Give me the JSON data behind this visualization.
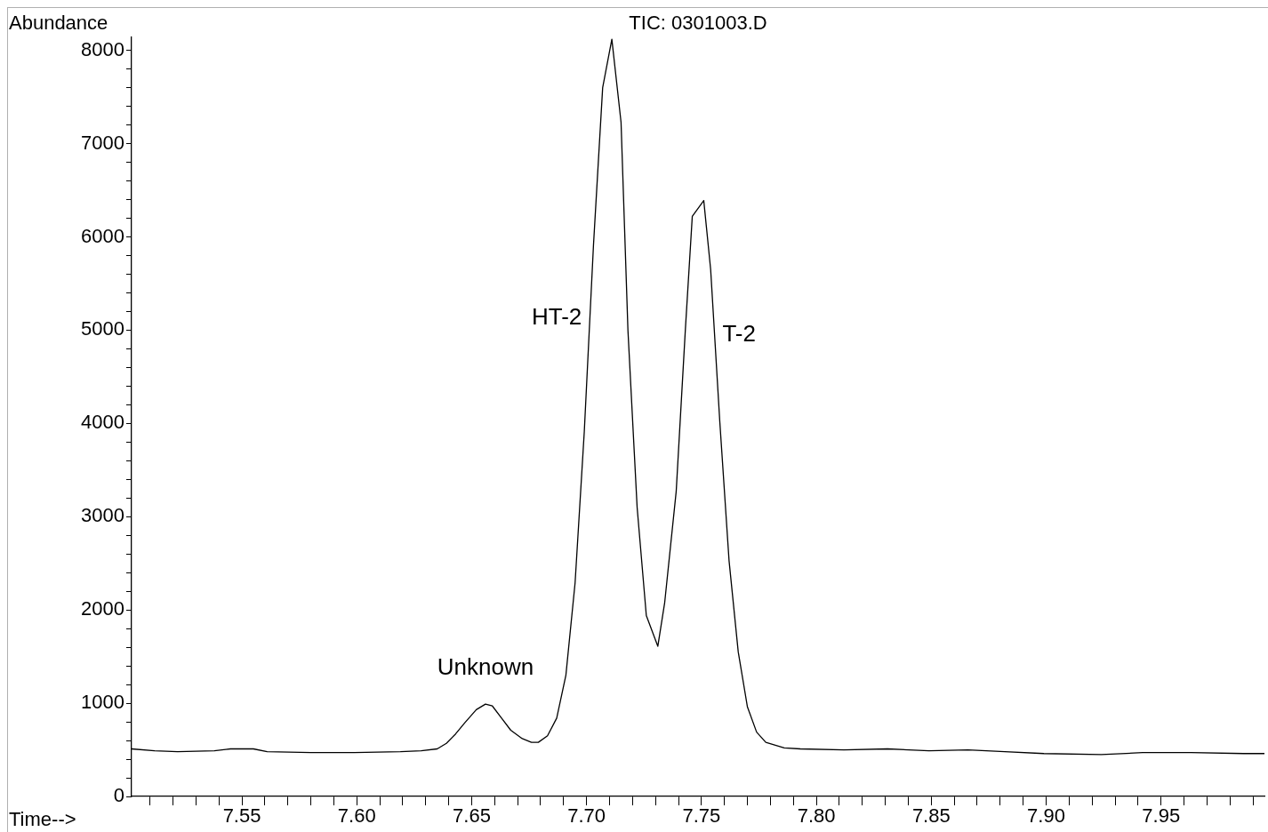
{
  "chart_data": {
    "type": "line",
    "title": "TIC: 0301003.D",
    "xlabel": "Time-->",
    "ylabel": "Abundance",
    "color": "#000000",
    "marker": "none",
    "line_style": "solid",
    "legend": false,
    "x": [
      7.502,
      7.512,
      7.522,
      7.538,
      7.545,
      7.555,
      7.561,
      7.58,
      7.599,
      7.619,
      7.628,
      7.635,
      7.639,
      7.643,
      7.647,
      7.652,
      7.656,
      7.659,
      7.663,
      7.667,
      7.672,
      7.676,
      7.679,
      7.683,
      7.687,
      7.691,
      7.695,
      7.699,
      7.703,
      7.707,
      7.711,
      7.715,
      7.718,
      7.722,
      7.726,
      7.731,
      7.734,
      7.739,
      7.743,
      7.746,
      7.751,
      7.754,
      7.758,
      7.762,
      7.766,
      7.77,
      7.774,
      7.778,
      7.786,
      7.793,
      7.812,
      7.831,
      7.849,
      7.866,
      7.882,
      7.899,
      7.924,
      7.942,
      7.963,
      7.986,
      7.995
    ],
    "values": [
      510,
      490,
      480,
      490,
      510,
      510,
      480,
      470,
      470,
      480,
      490,
      510,
      570,
      670,
      790,
      930,
      990,
      970,
      840,
      710,
      620,
      580,
      580,
      650,
      840,
      1300,
      2290,
      3910,
      5910,
      7600,
      8120,
      7230,
      5000,
      3100,
      1940,
      1610,
      2080,
      3270,
      5010,
      6220,
      6390,
      5650,
      4010,
      2530,
      1550,
      960,
      690,
      580,
      520,
      510,
      500,
      510,
      490,
      500,
      480,
      460,
      450,
      470,
      470,
      460,
      460
    ],
    "xlim": [
      7.502,
      7.995
    ],
    "xticks": [
      {
        "value": 7.51,
        "label": null
      },
      {
        "value": 7.52,
        "label": null
      },
      {
        "value": 7.53,
        "label": null
      },
      {
        "value": 7.54,
        "label": null
      },
      7.55,
      {
        "value": 7.56,
        "label": null
      },
      {
        "value": 7.57,
        "label": null
      },
      {
        "value": 7.58,
        "label": null
      },
      {
        "value": 7.59,
        "label": null
      },
      {
        "value": 7.6,
        "label": "7.60"
      },
      {
        "value": 7.61,
        "label": null
      },
      {
        "value": 7.62,
        "label": null
      },
      {
        "value": 7.63,
        "label": null
      },
      {
        "value": 7.64,
        "label": null
      },
      7.65,
      {
        "value": 7.66,
        "label": null
      },
      {
        "value": 7.67,
        "label": null
      },
      {
        "value": 7.68,
        "label": null
      },
      {
        "value": 7.69,
        "label": null
      },
      {
        "value": 7.7,
        "label": "7.70"
      },
      {
        "value": 7.71,
        "label": null
      },
      {
        "value": 7.72,
        "label": null
      },
      {
        "value": 7.73,
        "label": null
      },
      {
        "value": 7.74,
        "label": null
      },
      7.75,
      {
        "value": 7.76,
        "label": null
      },
      {
        "value": 7.77,
        "label": null
      },
      {
        "value": 7.78,
        "label": null
      },
      {
        "value": 7.79,
        "label": null
      },
      {
        "value": 7.8,
        "label": "7.80"
      },
      {
        "value": 7.81,
        "label": null
      },
      {
        "value": 7.82,
        "label": null
      },
      {
        "value": 7.83,
        "label": null
      },
      {
        "value": 7.84,
        "label": null
      },
      7.85,
      {
        "value": 7.86,
        "label": null
      },
      {
        "value": 7.87,
        "label": null
      },
      {
        "value": 7.88,
        "label": null
      },
      {
        "value": 7.89,
        "label": null
      },
      {
        "value": 7.9,
        "label": "7.90"
      },
      {
        "value": 7.91,
        "label": null
      },
      {
        "value": 7.92,
        "label": null
      },
      {
        "value": 7.93,
        "label": null
      },
      {
        "value": 7.94,
        "label": null
      },
      7.95,
      {
        "value": 7.96,
        "label": null
      },
      {
        "value": 7.97,
        "label": null
      },
      {
        "value": 7.98,
        "label": null
      },
      {
        "value": 7.99,
        "label": null
      }
    ],
    "ylim": [
      0,
      8140
    ],
    "yticks": [
      0,
      {
        "value": 200,
        "label": null
      },
      {
        "value": 400,
        "label": null
      },
      {
        "value": 600,
        "label": null
      },
      {
        "value": 800,
        "label": null
      },
      1000,
      {
        "value": 1200,
        "label": null
      },
      {
        "value": 1400,
        "label": null
      },
      {
        "value": 1600,
        "label": null
      },
      {
        "value": 1800,
        "label": null
      },
      2000,
      {
        "value": 2200,
        "label": null
      },
      {
        "value": 2400,
        "label": null
      },
      {
        "value": 2600,
        "label": null
      },
      {
        "value": 2800,
        "label": null
      },
      3000,
      {
        "value": 3200,
        "label": null
      },
      {
        "value": 3400,
        "label": null
      },
      {
        "value": 3600,
        "label": null
      },
      {
        "value": 3800,
        "label": null
      },
      4000,
      {
        "value": 4200,
        "label": null
      },
      {
        "value": 4400,
        "label": null
      },
      {
        "value": 4600,
        "label": null
      },
      {
        "value": 4800,
        "label": null
      },
      5000,
      {
        "value": 5200,
        "label": null
      },
      {
        "value": 5400,
        "label": null
      },
      {
        "value": 5600,
        "label": null
      },
      {
        "value": 5800,
        "label": null
      },
      6000,
      {
        "value": 6200,
        "label": null
      },
      {
        "value": 6400,
        "label": null
      },
      {
        "value": 6600,
        "label": null
      },
      {
        "value": 6800,
        "label": null
      },
      7000,
      {
        "value": 7200,
        "label": null
      },
      {
        "value": 7400,
        "label": null
      },
      {
        "value": 7600,
        "label": null
      },
      {
        "value": 7800,
        "label": null
      },
      8000
    ],
    "annotations": [
      {
        "text": "Unknown",
        "x": 7.656,
        "y": 990
      },
      {
        "text": "HT-2",
        "x": 7.701,
        "y": 5130
      },
      {
        "text": "T-2",
        "x": 7.756,
        "y": 4950
      }
    ]
  }
}
